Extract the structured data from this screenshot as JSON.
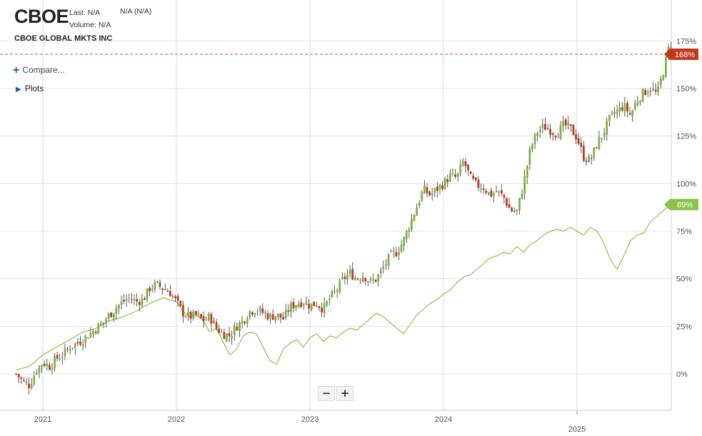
{
  "header": {
    "ticker": "CBOE",
    "last": "Last: N/A",
    "volume": "Volume: N/A",
    "change": "N/A (N/A)",
    "company": "CBOE GLOBAL MKTS INC"
  },
  "controls": {
    "compare_label": "Compare...",
    "plots_label": "Plots",
    "zoom_out": "−",
    "zoom_in": "+"
  },
  "colors": {
    "up": "#7cb342",
    "down": "#c0391b",
    "compare_line": "#8bc34a",
    "grid": "#e4e4e4",
    "dashed_line": "#d9534f"
  },
  "chart_data": {
    "type": "line",
    "y_unit": "%",
    "y_ticks": [
      0,
      25,
      50,
      75,
      100,
      125,
      150,
      175
    ],
    "x_ticks": [
      "2021",
      "2022",
      "2023",
      "2024",
      "2025"
    ],
    "ylim": [
      -18,
      195
    ],
    "grid": true,
    "series": [
      {
        "name": "CBOE",
        "style": "candlestick",
        "last_badge": "168%",
        "points": [
          [
            2020.8,
            0
          ],
          [
            2020.85,
            -4
          ],
          [
            2020.9,
            -6
          ],
          [
            2020.95,
            2
          ],
          [
            2021.0,
            6
          ],
          [
            2021.05,
            4
          ],
          [
            2021.1,
            8
          ],
          [
            2021.15,
            10
          ],
          [
            2021.2,
            14
          ],
          [
            2021.25,
            16
          ],
          [
            2021.3,
            18
          ],
          [
            2021.35,
            21
          ],
          [
            2021.4,
            24
          ],
          [
            2021.45,
            27
          ],
          [
            2021.5,
            31
          ],
          [
            2021.55,
            35
          ],
          [
            2021.6,
            38
          ],
          [
            2021.65,
            40
          ],
          [
            2021.7,
            38
          ],
          [
            2021.75,
            39
          ],
          [
            2021.8,
            45
          ],
          [
            2021.85,
            47
          ],
          [
            2021.9,
            45
          ],
          [
            2021.95,
            43
          ],
          [
            2022.0,
            38
          ],
          [
            2022.05,
            32
          ],
          [
            2022.1,
            30
          ],
          [
            2022.15,
            31
          ],
          [
            2022.2,
            28
          ],
          [
            2022.25,
            30
          ],
          [
            2022.3,
            24
          ],
          [
            2022.35,
            21
          ],
          [
            2022.4,
            20
          ],
          [
            2022.45,
            25
          ],
          [
            2022.5,
            28
          ],
          [
            2022.55,
            33
          ],
          [
            2022.6,
            34
          ],
          [
            2022.65,
            32
          ],
          [
            2022.7,
            30
          ],
          [
            2022.75,
            31
          ],
          [
            2022.8,
            29
          ],
          [
            2022.85,
            35
          ],
          [
            2022.9,
            37
          ],
          [
            2022.95,
            38
          ],
          [
            2023.0,
            36
          ],
          [
            2023.05,
            37
          ],
          [
            2023.1,
            34
          ],
          [
            2023.15,
            40
          ],
          [
            2023.2,
            44
          ],
          [
            2023.25,
            50
          ],
          [
            2023.3,
            53
          ],
          [
            2023.35,
            50
          ],
          [
            2023.4,
            52
          ],
          [
            2023.45,
            48
          ],
          [
            2023.5,
            50
          ],
          [
            2023.55,
            56
          ],
          [
            2023.6,
            62
          ],
          [
            2023.65,
            64
          ],
          [
            2023.7,
            70
          ],
          [
            2023.75,
            79
          ],
          [
            2023.8,
            88
          ],
          [
            2023.85,
            97
          ],
          [
            2023.9,
            94
          ],
          [
            2023.95,
            97
          ],
          [
            2024.0,
            100
          ],
          [
            2024.05,
            104
          ],
          [
            2024.1,
            103
          ],
          [
            2024.15,
            112
          ],
          [
            2024.2,
            103
          ],
          [
            2024.25,
            99
          ],
          [
            2024.3,
            98
          ],
          [
            2024.35,
            94
          ],
          [
            2024.4,
            96
          ],
          [
            2024.45,
            93
          ],
          [
            2024.5,
            86
          ],
          [
            2024.55,
            85
          ],
          [
            2024.6,
            100
          ],
          [
            2024.65,
            118
          ],
          [
            2024.7,
            127
          ],
          [
            2024.75,
            130
          ],
          [
            2024.8,
            128
          ],
          [
            2024.85,
            126
          ],
          [
            2024.9,
            131
          ],
          [
            2024.95,
            129
          ],
          [
            2025.0,
            124
          ],
          [
            2025.05,
            114
          ],
          [
            2025.1,
            112
          ],
          [
            2025.15,
            121
          ],
          [
            2025.2,
            127
          ],
          [
            2025.25,
            135
          ],
          [
            2025.3,
            138
          ],
          [
            2025.35,
            141
          ],
          [
            2025.4,
            136
          ],
          [
            2025.45,
            144
          ],
          [
            2025.5,
            148
          ],
          [
            2025.55,
            150
          ],
          [
            2025.6,
            147
          ],
          [
            2025.65,
            160
          ],
          [
            2025.7,
            175
          ],
          [
            2025.72,
            168
          ]
        ]
      },
      {
        "name": "",
        "style": "line",
        "last_badge": "89%",
        "points": [
          [
            2020.8,
            2
          ],
          [
            2020.9,
            4
          ],
          [
            2021.0,
            10
          ],
          [
            2021.1,
            14
          ],
          [
            2021.2,
            18
          ],
          [
            2021.3,
            22
          ],
          [
            2021.4,
            24
          ],
          [
            2021.5,
            28
          ],
          [
            2021.6,
            30
          ],
          [
            2021.7,
            33
          ],
          [
            2021.8,
            37
          ],
          [
            2021.9,
            40
          ],
          [
            2022.0,
            38
          ],
          [
            2022.05,
            33
          ],
          [
            2022.1,
            30
          ],
          [
            2022.15,
            31
          ],
          [
            2022.2,
            28
          ],
          [
            2022.25,
            22
          ],
          [
            2022.3,
            24
          ],
          [
            2022.35,
            17
          ],
          [
            2022.4,
            10
          ],
          [
            2022.45,
            13
          ],
          [
            2022.5,
            20
          ],
          [
            2022.55,
            22
          ],
          [
            2022.6,
            21
          ],
          [
            2022.65,
            14
          ],
          [
            2022.7,
            7
          ],
          [
            2022.75,
            5
          ],
          [
            2022.8,
            13
          ],
          [
            2022.85,
            16
          ],
          [
            2022.9,
            18
          ],
          [
            2022.95,
            14
          ],
          [
            2023.0,
            19
          ],
          [
            2023.05,
            21
          ],
          [
            2023.1,
            17
          ],
          [
            2023.15,
            20
          ],
          [
            2023.2,
            19
          ],
          [
            2023.25,
            22
          ],
          [
            2023.3,
            24
          ],
          [
            2023.35,
            23
          ],
          [
            2023.4,
            26
          ],
          [
            2023.45,
            29
          ],
          [
            2023.5,
            32
          ],
          [
            2023.55,
            30
          ],
          [
            2023.6,
            27
          ],
          [
            2023.65,
            24
          ],
          [
            2023.7,
            21
          ],
          [
            2023.75,
            26
          ],
          [
            2023.8,
            31
          ],
          [
            2023.85,
            34
          ],
          [
            2023.9,
            37
          ],
          [
            2023.95,
            39
          ],
          [
            2024.0,
            42
          ],
          [
            2024.05,
            44
          ],
          [
            2024.1,
            48
          ],
          [
            2024.15,
            51
          ],
          [
            2024.2,
            52
          ],
          [
            2024.25,
            55
          ],
          [
            2024.3,
            58
          ],
          [
            2024.35,
            61
          ],
          [
            2024.4,
            62
          ],
          [
            2024.45,
            64
          ],
          [
            2024.5,
            63
          ],
          [
            2024.55,
            67
          ],
          [
            2024.6,
            64
          ],
          [
            2024.65,
            68
          ],
          [
            2024.7,
            70
          ],
          [
            2024.75,
            73
          ],
          [
            2024.8,
            75
          ],
          [
            2024.85,
            76
          ],
          [
            2024.9,
            75
          ],
          [
            2024.95,
            77
          ],
          [
            2025.0,
            75
          ],
          [
            2025.05,
            73
          ],
          [
            2025.1,
            77
          ],
          [
            2025.15,
            75
          ],
          [
            2025.2,
            69
          ],
          [
            2025.25,
            60
          ],
          [
            2025.3,
            55
          ],
          [
            2025.35,
            62
          ],
          [
            2025.4,
            70
          ],
          [
            2025.45,
            73
          ],
          [
            2025.5,
            74
          ],
          [
            2025.55,
            80
          ],
          [
            2025.6,
            83
          ],
          [
            2025.65,
            86
          ],
          [
            2025.7,
            89
          ]
        ]
      }
    ]
  }
}
